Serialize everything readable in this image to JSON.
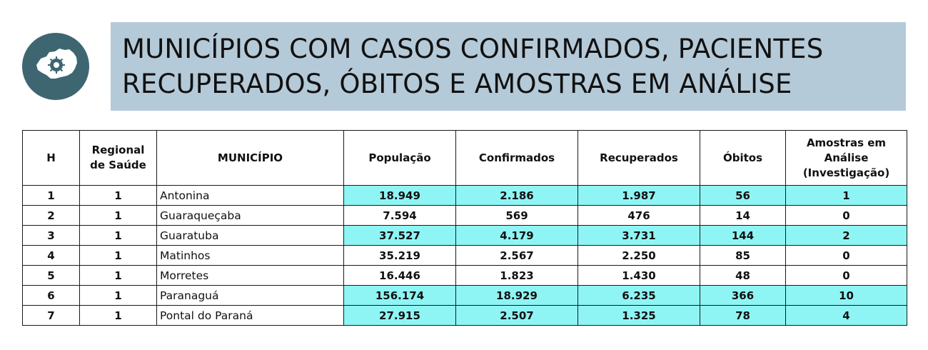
{
  "header": {
    "title_line1": "MUNICÍPIOS COM CASOS CONFIRMADOS, PACIENTES",
    "title_line2": "RECUPERADOS, ÓBITOS E AMOSTRAS EM ANÁLISE",
    "logo_icon": "parana-map-virus-icon"
  },
  "colors": {
    "title_bg": "#b5cad8",
    "logo_bg": "#3d6670",
    "highlight": "#8ff4f4"
  },
  "table": {
    "headers": [
      "H",
      "Regional de Saúde",
      "MUNICÍPIO",
      "População",
      "Confirmados",
      "Recuperados",
      "Óbitos",
      "Amostras em Análise (Investigação)"
    ],
    "header_regional_l1": "Regional",
    "header_regional_l2": "de Saúde",
    "header_amostras_l1": "Amostras em",
    "header_amostras_l2": "Análise",
    "header_amostras_l3": "(Investigação)",
    "rows": [
      {
        "h": "1",
        "regional": "1",
        "municipio": "Antonina",
        "populacao": "18.949",
        "confirmados": "2.186",
        "recuperados": "1.987",
        "obitos": "56",
        "amostras": "1",
        "highlight": true
      },
      {
        "h": "2",
        "regional": "1",
        "municipio": "Guaraqueçaba",
        "populacao": "7.594",
        "confirmados": "569",
        "recuperados": "476",
        "obitos": "14",
        "amostras": "0",
        "highlight": false
      },
      {
        "h": "3",
        "regional": "1",
        "municipio": "Guaratuba",
        "populacao": "37.527",
        "confirmados": "4.179",
        "recuperados": "3.731",
        "obitos": "144",
        "amostras": "2",
        "highlight": true
      },
      {
        "h": "4",
        "regional": "1",
        "municipio": "Matinhos",
        "populacao": "35.219",
        "confirmados": "2.567",
        "recuperados": "2.250",
        "obitos": "85",
        "amostras": "0",
        "highlight": false
      },
      {
        "h": "5",
        "regional": "1",
        "municipio": "Morretes",
        "populacao": "16.446",
        "confirmados": "1.823",
        "recuperados": "1.430",
        "obitos": "48",
        "amostras": "0",
        "highlight": false
      },
      {
        "h": "6",
        "regional": "1",
        "municipio": "Paranaguá",
        "populacao": "156.174",
        "confirmados": "18.929",
        "recuperados": "6.235",
        "obitos": "366",
        "amostras": "10",
        "highlight": true
      },
      {
        "h": "7",
        "regional": "1",
        "municipio": "Pontal do Paraná",
        "populacao": "27.915",
        "confirmados": "2.507",
        "recuperados": "1.325",
        "obitos": "78",
        "amostras": "4",
        "highlight": true
      }
    ]
  }
}
